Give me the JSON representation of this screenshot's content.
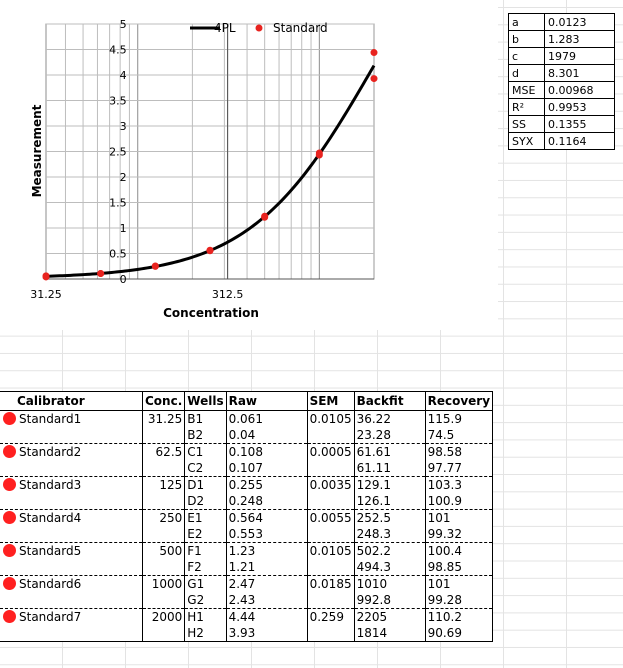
{
  "chart_data": {
    "type": "scatter",
    "xlabel": "Concentration",
    "ylabel": "Measurement",
    "x_tick_labels": [
      "31.25",
      "312.5"
    ],
    "y_ticks": [
      "0",
      "0.5",
      "1",
      "1.5",
      "2",
      "2.5",
      "3",
      "3.5",
      "4",
      "4.5",
      "5"
    ],
    "ylim": [
      0,
      5
    ],
    "xscale": "log",
    "xlim": [
      31.25,
      2000
    ],
    "grid": true,
    "legend_position": "top",
    "series": [
      {
        "name": "4PL",
        "kind": "line",
        "color": "#000000",
        "params": {
          "a": 0.0123,
          "b": 1.283,
          "c": 1979,
          "d": 8.301
        }
      },
      {
        "name": "Standard",
        "kind": "points",
        "color": "#e8231f",
        "points": [
          [
            31.25,
            0.061
          ],
          [
            31.25,
            0.04
          ],
          [
            62.5,
            0.108
          ],
          [
            62.5,
            0.107
          ],
          [
            125,
            0.255
          ],
          [
            125,
            0.248
          ],
          [
            250,
            0.564
          ],
          [
            250,
            0.553
          ],
          [
            500,
            1.23
          ],
          [
            500,
            1.21
          ],
          [
            1000,
            2.47
          ],
          [
            1000,
            2.43
          ],
          [
            2000,
            4.44
          ],
          [
            2000,
            3.93
          ]
        ]
      }
    ]
  },
  "params": [
    {
      "key": "a",
      "value": "0.0123"
    },
    {
      "key": "b",
      "value": "1.283"
    },
    {
      "key": "c",
      "value": "1979"
    },
    {
      "key": "d",
      "value": "8.301"
    },
    {
      "key": "MSE",
      "value": "0.00968"
    },
    {
      "key": "R²",
      "value": "0.9953"
    },
    {
      "key": "SS",
      "value": "0.1355"
    },
    {
      "key": "SYX",
      "value": "0.1164"
    }
  ],
  "table": {
    "headers": [
      "Calibrator",
      "Conc.",
      "Wells",
      "Raw",
      "SEM",
      "Backfit",
      "Recovery"
    ],
    "rows": [
      {
        "cal": "Standard1",
        "conc": "31.25",
        "sem": "0.0105",
        "wells": [
          "B1",
          "B2"
        ],
        "raw": [
          "0.061",
          "0.04"
        ],
        "backfit": [
          "36.22",
          "23.28"
        ],
        "recovery": [
          "115.9",
          "74.5"
        ]
      },
      {
        "cal": "Standard2",
        "conc": "62.5",
        "sem": "0.0005",
        "wells": [
          "C1",
          "C2"
        ],
        "raw": [
          "0.108",
          "0.107"
        ],
        "backfit": [
          "61.61",
          "61.11"
        ],
        "recovery": [
          "98.58",
          "97.77"
        ]
      },
      {
        "cal": "Standard3",
        "conc": "125",
        "sem": "0.0035",
        "wells": [
          "D1",
          "D2"
        ],
        "raw": [
          "0.255",
          "0.248"
        ],
        "backfit": [
          "129.1",
          "126.1"
        ],
        "recovery": [
          "103.3",
          "100.9"
        ]
      },
      {
        "cal": "Standard4",
        "conc": "250",
        "sem": "0.0055",
        "wells": [
          "E1",
          "E2"
        ],
        "raw": [
          "0.564",
          "0.553"
        ],
        "backfit": [
          "252.5",
          "248.3"
        ],
        "recovery": [
          "101",
          "99.32"
        ]
      },
      {
        "cal": "Standard5",
        "conc": "500",
        "sem": "0.0105",
        "wells": [
          "F1",
          "F2"
        ],
        "raw": [
          "1.23",
          "1.21"
        ],
        "backfit": [
          "502.2",
          "494.3"
        ],
        "recovery": [
          "100.4",
          "98.85"
        ]
      },
      {
        "cal": "Standard6",
        "conc": "1000",
        "sem": "0.0185",
        "wells": [
          "G1",
          "G2"
        ],
        "raw": [
          "2.47",
          "2.43"
        ],
        "backfit": [
          "1010",
          "992.8"
        ],
        "recovery": [
          "101",
          "99.28"
        ]
      },
      {
        "cal": "Standard7",
        "conc": "2000",
        "sem": "0.259",
        "wells": [
          "H1",
          "H2"
        ],
        "raw": [
          "4.44",
          "3.93"
        ],
        "backfit": [
          "2205",
          "1814"
        ],
        "recovery": [
          "110.2",
          "90.69"
        ]
      }
    ]
  }
}
